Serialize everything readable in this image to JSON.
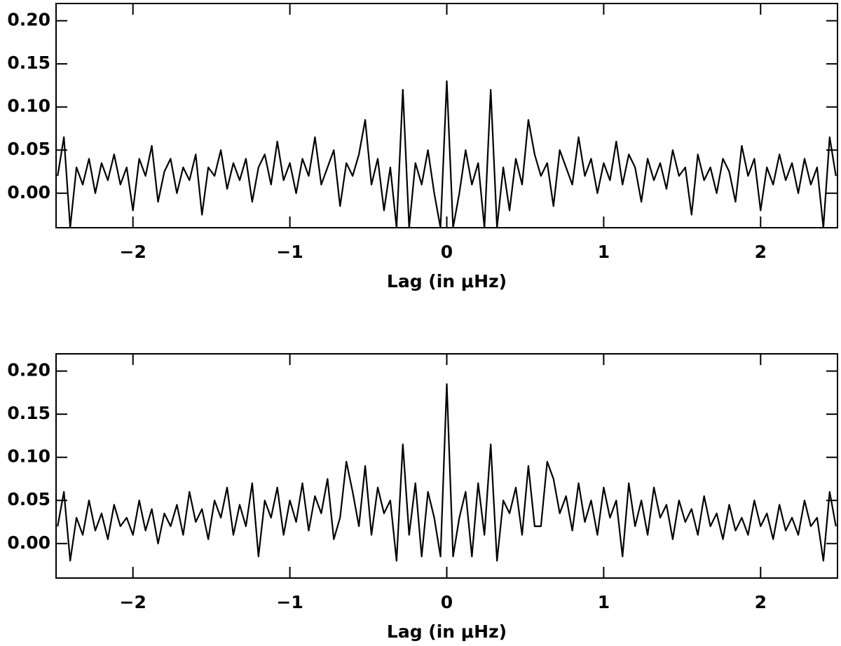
{
  "chart_data": [
    {
      "type": "line",
      "x_label": "Lag (in μHz)",
      "color": "#000000",
      "xlim": [
        -2.49,
        2.49
      ],
      "ylim": [
        -0.04,
        0.22
      ],
      "xticks": [
        {
          "value": -2,
          "label": "−2"
        },
        {
          "value": -1,
          "label": "−1"
        },
        0,
        1,
        2
      ],
      "yticks": [
        {
          "value": 0,
          "label": "0.00"
        },
        {
          "value": 0.05,
          "label": "0.05"
        },
        {
          "value": 0.1,
          "label": "0.10"
        },
        {
          "value": 0.15,
          "label": "0.15"
        },
        {
          "value": 0.2,
          "label": "0.20"
        }
      ],
      "x": [
        -2.48,
        -2.44,
        -2.4,
        -2.36,
        -2.32,
        -2.28,
        -2.24,
        -2.2,
        -2.16,
        -2.12,
        -2.08,
        -2.04,
        -2,
        -1.96,
        -1.92,
        -1.88,
        -1.84,
        -1.8,
        -1.76,
        -1.72,
        -1.68,
        -1.64,
        -1.6,
        -1.56,
        -1.52,
        -1.48,
        -1.44,
        -1.4,
        -1.36,
        -1.32,
        -1.28,
        -1.24,
        -1.2,
        -1.16,
        -1.12,
        -1.08,
        -1.04,
        -1,
        -0.96,
        -0.92,
        -0.88,
        -0.84,
        -0.8,
        -0.76,
        -0.72,
        -0.68,
        -0.64,
        -0.6,
        -0.56,
        -0.52,
        -0.48,
        -0.44,
        -0.4,
        -0.36,
        -0.32,
        -0.28,
        -0.24,
        -0.2,
        -0.16,
        -0.12,
        -0.08,
        -0.04,
        0,
        0.04,
        0.08,
        0.12,
        0.16,
        0.2,
        0.24,
        0.28,
        0.32,
        0.36,
        0.4,
        0.44,
        0.48,
        0.52,
        0.56,
        0.6,
        0.64,
        0.68,
        0.72,
        0.76,
        0.8,
        0.84,
        0.88,
        0.92,
        0.96,
        1,
        1.04,
        1.08,
        1.12,
        1.16,
        1.2,
        1.24,
        1.28,
        1.32,
        1.36,
        1.4,
        1.44,
        1.48,
        1.52,
        1.56,
        1.6,
        1.64,
        1.68,
        1.72,
        1.76,
        1.8,
        1.84,
        1.88,
        1.92,
        1.96,
        2,
        2.04,
        2.08,
        2.12,
        2.16,
        2.2,
        2.24,
        2.28,
        2.32,
        2.36,
        2.4,
        2.44,
        2.48
      ],
      "values": [
        0.02,
        0.065,
        -0.04,
        0.03,
        0.01,
        0.04,
        0.0,
        0.035,
        0.015,
        0.045,
        0.01,
        0.03,
        -0.02,
        0.04,
        0.02,
        0.055,
        -0.01,
        0.025,
        0.04,
        0.0,
        0.03,
        0.015,
        0.045,
        -0.025,
        0.03,
        0.02,
        0.05,
        0.005,
        0.035,
        0.015,
        0.04,
        -0.01,
        0.03,
        0.045,
        0.01,
        0.06,
        0.015,
        0.035,
        0.0,
        0.04,
        0.02,
        0.065,
        0.01,
        0.03,
        0.05,
        -0.015,
        0.035,
        0.02,
        0.045,
        0.085,
        0.01,
        0.04,
        -0.02,
        0.03,
        -0.04,
        0.12,
        -0.04,
        0.035,
        0.01,
        0.05,
        0.0,
        -0.04,
        0.13,
        -0.04,
        0.0,
        0.05,
        0.01,
        0.035,
        -0.04,
        0.12,
        -0.04,
        0.03,
        -0.02,
        0.04,
        0.01,
        0.085,
        0.045,
        0.02,
        0.035,
        -0.015,
        0.05,
        0.03,
        0.01,
        0.065,
        0.02,
        0.04,
        0.0,
        0.035,
        0.015,
        0.06,
        0.01,
        0.045,
        0.03,
        -0.01,
        0.04,
        0.015,
        0.035,
        0.005,
        0.05,
        0.02,
        0.03,
        -0.025,
        0.045,
        0.015,
        0.03,
        0.0,
        0.04,
        0.025,
        -0.01,
        0.055,
        0.02,
        0.04,
        -0.02,
        0.03,
        0.01,
        0.045,
        0.015,
        0.035,
        0.0,
        0.04,
        0.01,
        0.03,
        -0.04,
        0.065,
        0.02
      ]
    },
    {
      "type": "line",
      "x_label": "Lag (in μHz)",
      "color": "#000000",
      "xlim": [
        -2.49,
        2.49
      ],
      "ylim": [
        -0.04,
        0.22
      ],
      "xticks": [
        {
          "value": -2,
          "label": "−2"
        },
        {
          "value": -1,
          "label": "−1"
        },
        0,
        1,
        2
      ],
      "yticks": [
        {
          "value": 0,
          "label": "0.00"
        },
        {
          "value": 0.05,
          "label": "0.05"
        },
        {
          "value": 0.1,
          "label": "0.10"
        },
        {
          "value": 0.15,
          "label": "0.15"
        },
        {
          "value": 0.2,
          "label": "0.20"
        }
      ],
      "x": [
        -2.48,
        -2.44,
        -2.4,
        -2.36,
        -2.32,
        -2.28,
        -2.24,
        -2.2,
        -2.16,
        -2.12,
        -2.08,
        -2.04,
        -2,
        -1.96,
        -1.92,
        -1.88,
        -1.84,
        -1.8,
        -1.76,
        -1.72,
        -1.68,
        -1.64,
        -1.6,
        -1.56,
        -1.52,
        -1.48,
        -1.44,
        -1.4,
        -1.36,
        -1.32,
        -1.28,
        -1.24,
        -1.2,
        -1.16,
        -1.12,
        -1.08,
        -1.04,
        -1,
        -0.96,
        -0.92,
        -0.88,
        -0.84,
        -0.8,
        -0.76,
        -0.72,
        -0.68,
        -0.64,
        -0.6,
        -0.56,
        -0.52,
        -0.48,
        -0.44,
        -0.4,
        -0.36,
        -0.32,
        -0.28,
        -0.24,
        -0.2,
        -0.16,
        -0.12,
        -0.08,
        -0.04,
        0,
        0.04,
        0.08,
        0.12,
        0.16,
        0.2,
        0.24,
        0.28,
        0.32,
        0.36,
        0.4,
        0.44,
        0.48,
        0.52,
        0.56,
        0.6,
        0.64,
        0.68,
        0.72,
        0.76,
        0.8,
        0.84,
        0.88,
        0.92,
        0.96,
        1,
        1.04,
        1.08,
        1.12,
        1.16,
        1.2,
        1.24,
        1.28,
        1.32,
        1.36,
        1.4,
        1.44,
        1.48,
        1.52,
        1.56,
        1.6,
        1.64,
        1.68,
        1.72,
        1.76,
        1.8,
        1.84,
        1.88,
        1.92,
        1.96,
        2,
        2.04,
        2.08,
        2.12,
        2.16,
        2.2,
        2.24,
        2.28,
        2.32,
        2.36,
        2.4,
        2.44,
        2.48
      ],
      "values": [
        0.02,
        0.06,
        -0.02,
        0.03,
        0.01,
        0.05,
        0.015,
        0.035,
        0.005,
        0.045,
        0.02,
        0.03,
        0.01,
        0.05,
        0.015,
        0.04,
        0.0,
        0.035,
        0.02,
        0.045,
        0.01,
        0.06,
        0.025,
        0.04,
        0.005,
        0.05,
        0.03,
        0.065,
        0.01,
        0.045,
        0.02,
        0.07,
        -0.015,
        0.05,
        0.03,
        0.065,
        0.01,
        0.05,
        0.025,
        0.07,
        0.015,
        0.055,
        0.035,
        0.075,
        0.005,
        0.03,
        0.095,
        0.06,
        0.02,
        0.09,
        0.01,
        0.065,
        0.035,
        0.05,
        -0.02,
        0.115,
        0.01,
        0.07,
        -0.015,
        0.06,
        0.03,
        -0.015,
        0.185,
        -0.015,
        0.03,
        0.06,
        -0.015,
        0.07,
        0.01,
        0.115,
        -0.02,
        0.05,
        0.035,
        0.065,
        0.01,
        0.09,
        0.02,
        0.02,
        0.095,
        0.075,
        0.035,
        0.055,
        0.015,
        0.07,
        0.025,
        0.05,
        0.01,
        0.065,
        0.03,
        0.05,
        -0.015,
        0.07,
        0.02,
        0.05,
        0.01,
        0.065,
        0.03,
        0.045,
        0.005,
        0.05,
        0.025,
        0.04,
        0.01,
        0.055,
        0.02,
        0.035,
        0.005,
        0.045,
        0.015,
        0.03,
        0.01,
        0.05,
        0.02,
        0.035,
        0.005,
        0.045,
        0.015,
        0.03,
        0.01,
        0.05,
        0.02,
        0.03,
        -0.02,
        0.06,
        0.02
      ]
    }
  ]
}
